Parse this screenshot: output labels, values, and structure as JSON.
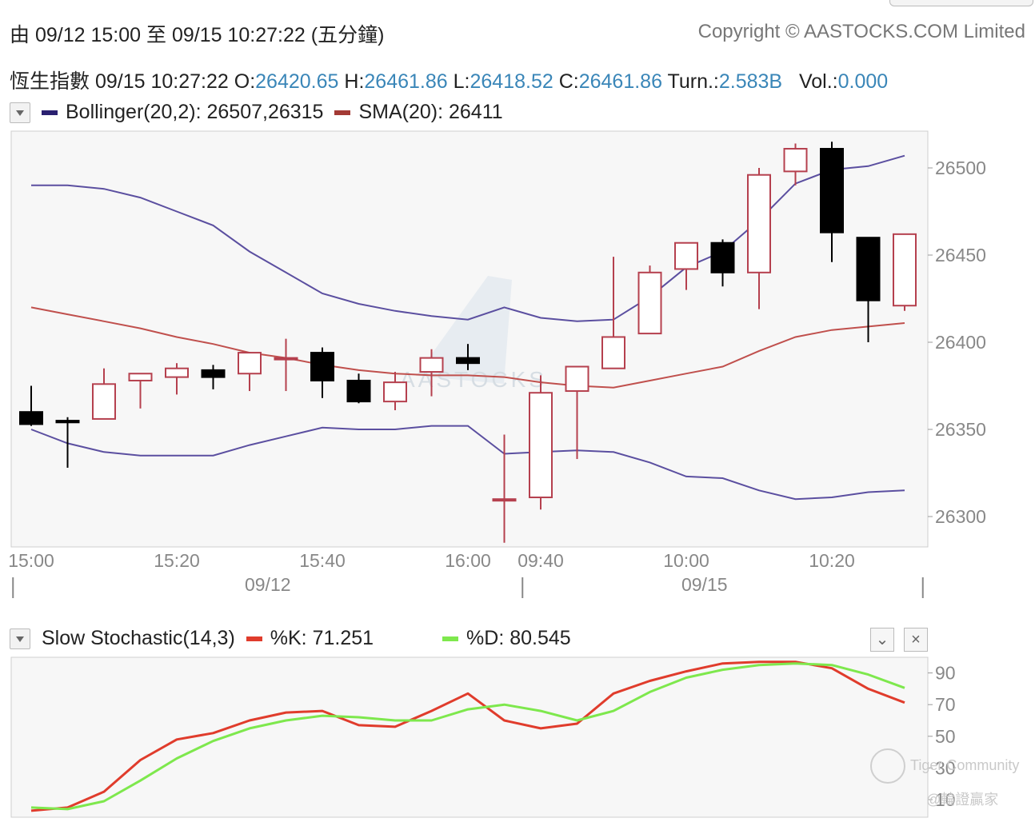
{
  "header": {
    "range_prefix": "由",
    "range_from": "09/12 15:00",
    "range_to_word": "至",
    "range_to": "09/15 10:27:22",
    "range_suffix": "(五分鐘)",
    "copyright": "Copyright © AASTOCKS.COM Limited"
  },
  "quote": {
    "name": "恆生指數",
    "time": "09/15 10:27:22",
    "o_label": "O:",
    "o": "26420.65",
    "h_label": "H:",
    "h": "26461.86",
    "l_label": "L:",
    "l": "26418.52",
    "c_label": "C:",
    "c": "26461.86",
    "turn_label": "Turn.:",
    "turn": "2.583B",
    "vol_label": "Vol.:",
    "vol": "0.000"
  },
  "indicators": {
    "bollinger_label": "Bollinger(20,2): 26507,26315",
    "sma_label": "SMA(20): 26411",
    "stoch_name": "Slow Stochastic(14,3)",
    "k_label": "%K: 71.251",
    "d_label": "%D: 80.545"
  },
  "controls": {
    "collapse": "⌄",
    "close": "×"
  },
  "colors": {
    "bollinger": "#5b4fa0",
    "bollinger_legend": "#2a2070",
    "sma": "#c0504d",
    "sma_legend": "#a33a35",
    "up_candle": "#b5404e",
    "down_candle": "#000000",
    "k_line": "#e03c2c",
    "d_line": "#7ee84d",
    "value_text": "#3a86b8"
  },
  "watermarks": {
    "center": "AASTOCKS",
    "community": "Tiger Community",
    "handle": "@輪證贏家"
  },
  "chart_data": [
    {
      "type": "candlestick",
      "ylim": [
        26280,
        26520
      ],
      "yticks": [
        26300,
        26350,
        26400,
        26450,
        26500
      ],
      "time_labels": [
        "15:00",
        "15:20",
        "15:40",
        "16:00",
        "09:40",
        "10:00",
        "10:20"
      ],
      "time_label_index": [
        0,
        4,
        8,
        12,
        14,
        18,
        22
      ],
      "date_labels": [
        "09/12",
        "09/15"
      ],
      "date_label_index": [
        6.5,
        18.5
      ],
      "session_dividers_index": [
        -0.5,
        13.5,
        24.5
      ],
      "candles": [
        {
          "o": 26360,
          "h": 26375,
          "l": 26352,
          "c": 26353
        },
        {
          "o": 26355,
          "h": 26357,
          "l": 26328,
          "c": 26354
        },
        {
          "o": 26356,
          "h": 26385,
          "l": 26356,
          "c": 26376
        },
        {
          "o": 26378,
          "h": 26382,
          "l": 26362,
          "c": 26382
        },
        {
          "o": 26380,
          "h": 26388,
          "l": 26370,
          "c": 26385
        },
        {
          "o": 26384,
          "h": 26387,
          "l": 26373,
          "c": 26380
        },
        {
          "o": 26382,
          "h": 26394,
          "l": 26372,
          "c": 26394
        },
        {
          "o": 26391,
          "h": 26402,
          "l": 26372,
          "c": 26391
        },
        {
          "o": 26394,
          "h": 26397,
          "l": 26368,
          "c": 26378
        },
        {
          "o": 26378,
          "h": 26382,
          "l": 26365,
          "c": 26366
        },
        {
          "o": 26366,
          "h": 26383,
          "l": 26361,
          "c": 26377
        },
        {
          "o": 26383,
          "h": 26396,
          "l": 26369,
          "c": 26391
        },
        {
          "o": 26391,
          "h": 26399,
          "l": 26384,
          "c": 26388
        },
        {
          "o": 26310,
          "h": 26347,
          "l": 26285,
          "c": 26310
        },
        {
          "o": 26311,
          "h": 26381,
          "l": 26304,
          "c": 26371
        },
        {
          "o": 26372,
          "h": 26386,
          "l": 26333,
          "c": 26386
        },
        {
          "o": 26385,
          "h": 26449,
          "l": 26385,
          "c": 26403
        },
        {
          "o": 26405,
          "h": 26444,
          "l": 26405,
          "c": 26440
        },
        {
          "o": 26442,
          "h": 26457,
          "l": 26430,
          "c": 26457
        },
        {
          "o": 26457,
          "h": 26459,
          "l": 26432,
          "c": 26440
        },
        {
          "o": 26440,
          "h": 26500,
          "l": 26419,
          "c": 26496
        },
        {
          "o": 26498,
          "h": 26514,
          "l": 26490,
          "c": 26511
        },
        {
          "o": 26511,
          "h": 26515,
          "l": 26446,
          "c": 26463
        },
        {
          "o": 26460,
          "h": 26460,
          "l": 26400,
          "c": 26424
        },
        {
          "o": 26421,
          "h": 26462,
          "l": 26418,
          "c": 26462
        }
      ],
      "series": [
        {
          "name": "Bollinger(20,2)",
          "values": [
            26490,
            26490,
            26488,
            26483,
            26475,
            26467,
            26452,
            26440,
            26428,
            26422,
            26418,
            26415,
            26413,
            26420,
            26414,
            26412,
            26413,
            26426,
            26443,
            26452,
            26470,
            26491,
            26499,
            26501,
            26507
          ]
        },
        {
          "name": "Bollinger(20,2)",
          "values": [
            26350,
            26342,
            26337,
            26335,
            26335,
            26335,
            26341,
            26346,
            26351,
            26350,
            26350,
            26352,
            26352,
            26336,
            26337,
            26338,
            26337,
            26331,
            26323,
            26322,
            26315,
            26310,
            26311,
            26314,
            26315
          ]
        },
        {
          "name": "SMA(20)",
          "values": [
            26420,
            26416,
            26412,
            26408,
            26403,
            26399,
            26394,
            26391,
            26387,
            26384,
            26382,
            26381,
            26381,
            26380,
            26377,
            26375,
            26374,
            26378,
            26382,
            26386,
            26395,
            26403,
            26407,
            26409,
            26411
          ]
        }
      ]
    },
    {
      "type": "line",
      "ylim": [
        0,
        100
      ],
      "yticks": [
        10,
        30,
        50,
        70,
        90
      ],
      "series": [
        {
          "name": "%K",
          "values": [
            3,
            5,
            15,
            35,
            48,
            52,
            60,
            65,
            66,
            57,
            56,
            66,
            77,
            60,
            55,
            58,
            77,
            85,
            91,
            96,
            97,
            97,
            93,
            80,
            71.251
          ]
        },
        {
          "name": "%D",
          "values": [
            5,
            4,
            9,
            22,
            36,
            47,
            55,
            60,
            63,
            62,
            60,
            60,
            67,
            70,
            66,
            60,
            66,
            78,
            87,
            92,
            95,
            96,
            95,
            89,
            80.545
          ]
        }
      ]
    }
  ]
}
